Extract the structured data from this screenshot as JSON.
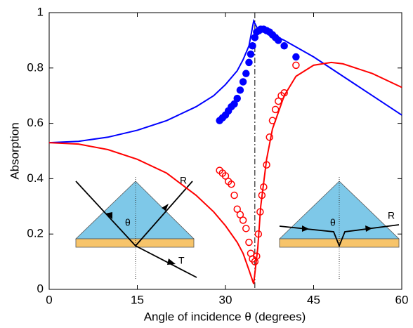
{
  "chart_data": {
    "type": "line",
    "xlabel": "Angle of incidence θ (degrees)",
    "ylabel": "Absorption",
    "xlim": [
      0,
      60
    ],
    "ylim": [
      0,
      1
    ],
    "xticks": [
      0,
      15,
      30,
      45,
      60
    ],
    "yticks": [
      0,
      0.2,
      0.4,
      0.6,
      0.8,
      1
    ],
    "grid": false,
    "vline": 35,
    "series": [
      {
        "color": "#0000ff",
        "marker": "none",
        "x": [
          0,
          5,
          10,
          15,
          20,
          25,
          28,
          30,
          32,
          33,
          34,
          34.8,
          35.5,
          37,
          40,
          45,
          50,
          55,
          60
        ],
        "values": [
          0.53,
          0.535,
          0.55,
          0.575,
          0.61,
          0.66,
          0.7,
          0.74,
          0.79,
          0.83,
          0.88,
          0.97,
          0.94,
          0.93,
          0.9,
          0.84,
          0.77,
          0.7,
          0.63
        ]
      },
      {
        "color": "#ff0000",
        "marker": "none",
        "x": [
          0,
          5,
          10,
          15,
          20,
          25,
          28,
          30,
          32,
          33,
          34,
          34.8,
          35.5,
          36,
          37,
          38,
          40,
          42,
          45,
          48,
          50,
          55,
          60
        ],
        "values": [
          0.53,
          0.525,
          0.505,
          0.47,
          0.42,
          0.34,
          0.28,
          0.23,
          0.17,
          0.13,
          0.07,
          0.02,
          0.15,
          0.3,
          0.47,
          0.58,
          0.7,
          0.77,
          0.81,
          0.82,
          0.815,
          0.78,
          0.73
        ]
      },
      {
        "color": "#0000ff",
        "marker": "filled",
        "x": [
          29,
          29.5,
          30,
          30.5,
          31,
          31.5,
          32,
          32.5,
          33,
          33.5,
          34,
          34.3,
          34.6,
          35,
          35.3,
          35.7,
          36,
          36.5,
          37,
          37.5,
          38,
          38.5,
          39,
          40,
          42
        ],
        "values": [
          0.61,
          0.62,
          0.63,
          0.645,
          0.66,
          0.67,
          0.69,
          0.72,
          0.75,
          0.78,
          0.82,
          0.85,
          0.88,
          0.91,
          0.93,
          0.935,
          0.94,
          0.94,
          0.935,
          0.93,
          0.92,
          0.91,
          0.9,
          0.88,
          0.84
        ]
      },
      {
        "color": "#ff0000",
        "marker": "open",
        "x": [
          29,
          29.5,
          30,
          30.5,
          31,
          31.5,
          32,
          32.5,
          33,
          33.5,
          34,
          34.3,
          34.6,
          35,
          35.3,
          35.6,
          35.9,
          36.2,
          36.5,
          37,
          37.5,
          38,
          38.5,
          39,
          39.5,
          40,
          42
        ],
        "values": [
          0.43,
          0.42,
          0.41,
          0.39,
          0.38,
          0.34,
          0.29,
          0.27,
          0.25,
          0.22,
          0.17,
          0.13,
          0.11,
          0.1,
          0.12,
          0.2,
          0.28,
          0.34,
          0.37,
          0.45,
          0.55,
          0.61,
          0.65,
          0.68,
          0.7,
          0.71,
          0.81
        ]
      }
    ],
    "annotations": [
      "R",
      "θ",
      "T",
      "θ",
      "R"
    ]
  }
}
